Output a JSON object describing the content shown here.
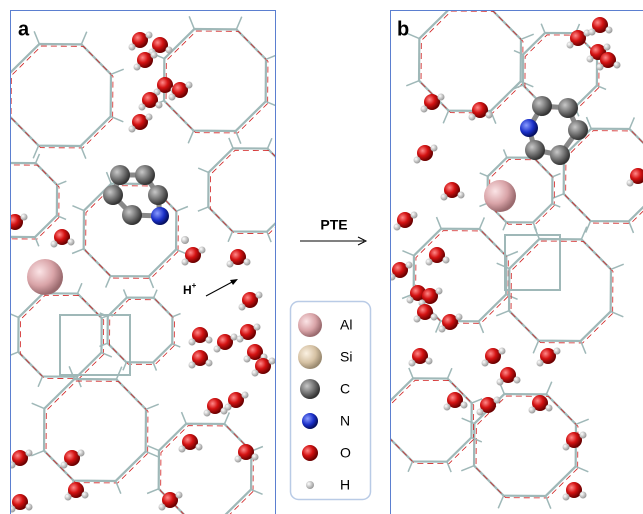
{
  "panels": [
    {
      "label": "a",
      "annotation": {
        "text": "H",
        "superscript": "+"
      }
    },
    {
      "label": "b"
    }
  ],
  "arrow": {
    "label": "PTE"
  },
  "legend": {
    "items": [
      {
        "label": "Al"
      },
      {
        "label": "Si"
      },
      {
        "label": "C"
      },
      {
        "label": "N"
      },
      {
        "label": "O"
      },
      {
        "label": "H"
      }
    ]
  }
}
